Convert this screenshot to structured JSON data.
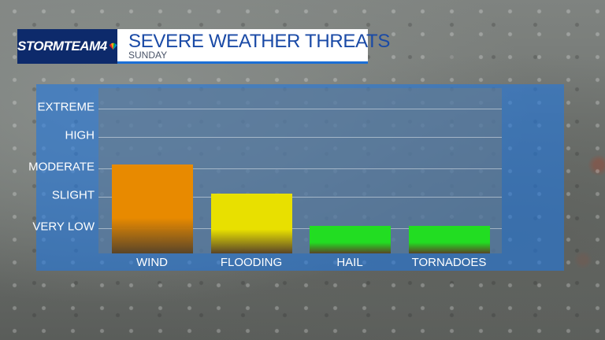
{
  "header": {
    "logo_text": "STORMTEAM4",
    "title": "SEVERE WEATHER THREATS",
    "subtitle": "SUNDAY"
  },
  "colors": {
    "navy": "#0d2a6b",
    "title_blue": "#1a4aa6",
    "panel_blue": "#2378dc"
  },
  "chart_data": {
    "type": "bar",
    "title": "SEVERE WEATHER THREATS",
    "subtitle": "SUNDAY",
    "categories": [
      "WIND",
      "FLOODING",
      "HAIL",
      "TORNADOES"
    ],
    "levels": [
      "VERY LOW",
      "SLIGHT",
      "MODERATE",
      "HIGH",
      "EXTREME"
    ],
    "values": [
      3,
      2,
      1,
      1
    ],
    "value_labels": [
      "MODERATE",
      "SLIGHT",
      "VERY LOW",
      "VERY LOW"
    ],
    "bar_colors": [
      "#e88a00",
      "#e8e000",
      "#22dd22",
      "#22dd22"
    ],
    "ylim": [
      0,
      5
    ],
    "grid": true,
    "legend": "none"
  }
}
